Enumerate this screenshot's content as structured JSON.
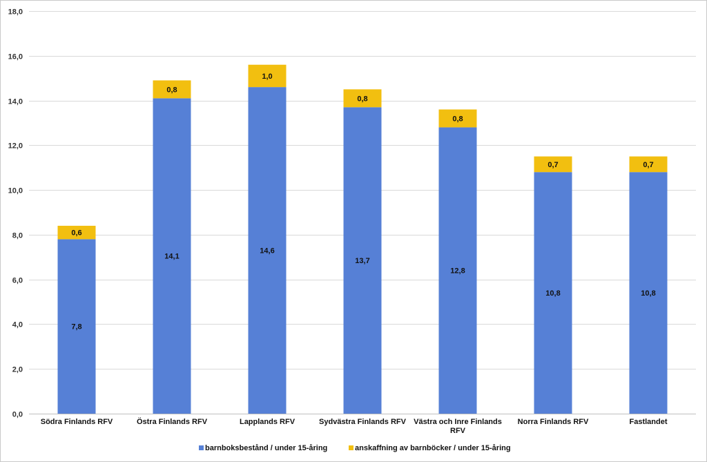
{
  "chart_data": {
    "type": "bar",
    "stacked": true,
    "categories": [
      [
        "Södra Finlands RFV"
      ],
      [
        "Östra Finlands RFV"
      ],
      [
        "Lapplands RFV"
      ],
      [
        "Sydvästra Finlands RFV"
      ],
      [
        "Västra och Inre Finlands",
        "RFV"
      ],
      [
        "Norra Finlands RFV"
      ],
      [
        "Fastlandet"
      ]
    ],
    "series": [
      {
        "name": "barnboksbestånd / under 15-åring",
        "color": "#5680d6",
        "values": [
          7.8,
          14.1,
          14.6,
          13.7,
          12.8,
          10.8,
          10.8
        ],
        "labels": [
          "7,8",
          "14,1",
          "14,6",
          "13,7",
          "12,8",
          "10,8",
          "10,8"
        ]
      },
      {
        "name": "anskaffning av barnböcker / under 15-åring",
        "color": "#f2bf10",
        "values": [
          0.6,
          0.8,
          1.0,
          0.8,
          0.8,
          0.7,
          0.7
        ],
        "labels": [
          "0,6",
          "0,8",
          "1,0",
          "0,8",
          "0,8",
          "0,7",
          "0,7"
        ]
      }
    ],
    "ylim": [
      0,
      18
    ],
    "yticks": [
      0,
      2,
      4,
      6,
      8,
      10,
      12,
      14,
      16,
      18
    ],
    "ytick_labels": [
      "0,0",
      "2,0",
      "4,0",
      "6,0",
      "8,0",
      "10,0",
      "12,0",
      "14,0",
      "16,0",
      "18,0"
    ],
    "grid": true,
    "legend_position": "bottom"
  }
}
